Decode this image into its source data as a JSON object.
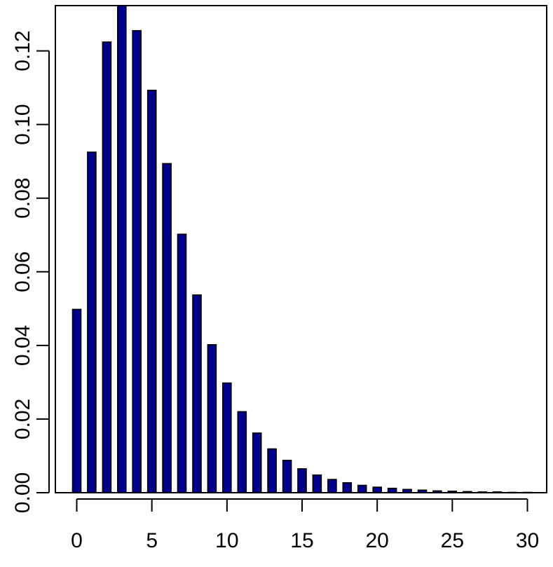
{
  "chart_data": {
    "type": "bar",
    "title": "",
    "xlabel": "",
    "ylabel": "",
    "x": [
      0,
      1,
      2,
      3,
      4,
      5,
      6,
      7,
      8,
      9,
      10,
      11,
      12,
      13,
      14,
      15,
      16,
      17,
      18,
      19,
      20,
      21,
      22,
      23,
      24,
      25,
      26,
      27,
      28,
      29,
      30
    ],
    "values": [
      0.0498,
      0.0925,
      0.1224,
      0.1323,
      0.1255,
      0.1093,
      0.0894,
      0.0702,
      0.0537,
      0.0402,
      0.0298,
      0.022,
      0.0162,
      0.0119,
      0.0088,
      0.0065,
      0.0048,
      0.0036,
      0.0027,
      0.002,
      0.0015,
      0.0012,
      0.0009,
      0.0007,
      0.0005,
      0.0004,
      0.0003,
      0.0002,
      0.0002,
      0.0001,
      0.0001
    ],
    "xlim": [
      -1,
      30.5
    ],
    "ylim": [
      0,
      0.1323
    ],
    "x_ticks": [
      "0",
      "5",
      "10",
      "15",
      "20",
      "25",
      "30"
    ],
    "y_ticks": [
      "0.00",
      "0.02",
      "0.04",
      "0.06",
      "0.08",
      "0.10",
      "0.12"
    ],
    "bar_color": "#00008B",
    "grid": false,
    "legend": "none"
  }
}
